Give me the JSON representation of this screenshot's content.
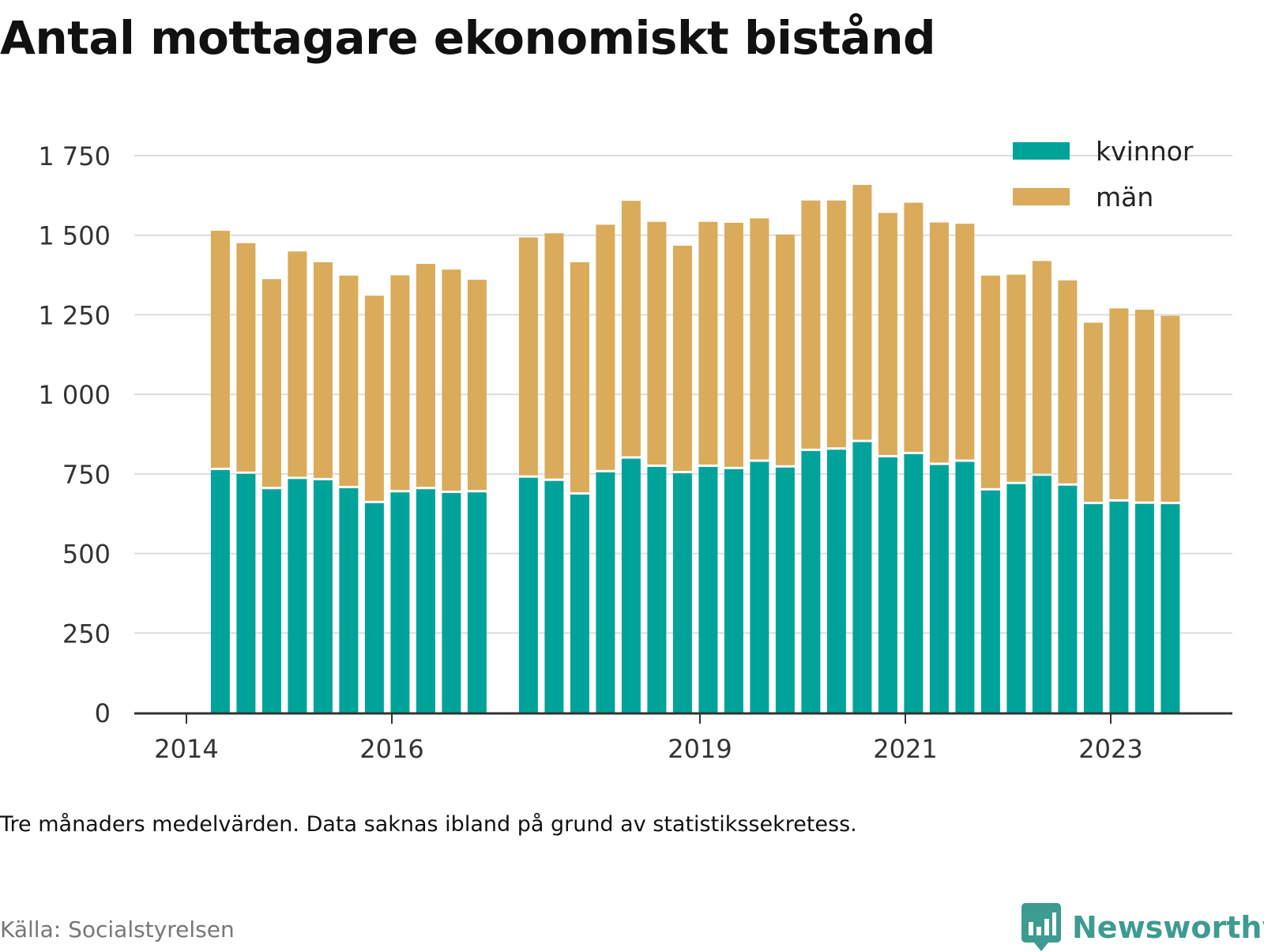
{
  "title": "Antal mottagare ekonomiskt bistånd",
  "note": "Tre månaders medelvärden. Data saknas ibland på grund av statistikssekretess.",
  "source": "Källa: Socialstyrelsen",
  "brand": {
    "name": "Newsworthy",
    "logo_icon": "bar-chart-speech-bubble-icon",
    "color": "#3d9b91"
  },
  "colors": {
    "kvinnor": "#00a39a",
    "man": "#d9ab5a",
    "grid": "#dddddd",
    "axis": "#333333"
  },
  "chart_data": {
    "type": "bar",
    "stacked": true,
    "legend_position": "top-right",
    "grid": true,
    "ylim": [
      0,
      1750
    ],
    "yticks": [
      "0",
      "250",
      "500",
      "750",
      "1 000",
      "1 250",
      "1 500",
      "1 750"
    ],
    "yticks_values": [
      0,
      250,
      500,
      750,
      1000,
      1250,
      1500,
      1750
    ],
    "xticks": [
      "2014",
      "2016",
      "2019",
      "2021",
      "2023"
    ],
    "xticks_values": [
      2014.0,
      2016.0,
      2019.0,
      2021.0,
      2023.0
    ],
    "x": [
      2014.33,
      2014.58,
      2014.83,
      2015.08,
      2015.33,
      2015.58,
      2015.83,
      2016.08,
      2016.33,
      2016.58,
      2016.83,
      2017.33,
      2017.58,
      2017.83,
      2018.08,
      2018.33,
      2018.58,
      2018.83,
      2019.08,
      2019.33,
      2019.58,
      2019.83,
      2020.08,
      2020.33,
      2020.58,
      2020.83,
      2021.08,
      2021.33,
      2021.58,
      2021.83,
      2022.08,
      2022.33,
      2022.58,
      2022.83,
      2023.08,
      2023.33,
      2023.58
    ],
    "series": [
      {
        "name": "kvinnor",
        "values": [
          762,
          750,
          702,
          734,
          730,
          705,
          658,
          692,
          702,
          690,
          692,
          738,
          728,
          685,
          755,
          798,
          772,
          752,
          772,
          765,
          788,
          770,
          822,
          826,
          850,
          802,
          812,
          778,
          788,
          698,
          718,
          744,
          713,
          655,
          663,
          656,
          655
        ]
      },
      {
        "name": "män",
        "values": [
          752,
          725,
          660,
          715,
          685,
          668,
          652,
          682,
          708,
          702,
          668,
          755,
          778,
          730,
          778,
          810,
          770,
          715,
          770,
          774,
          765,
          732,
          787,
          783,
          808,
          768,
          790,
          762,
          748,
          675,
          658,
          675,
          645,
          570,
          607,
          610,
          592
        ]
      }
    ]
  }
}
